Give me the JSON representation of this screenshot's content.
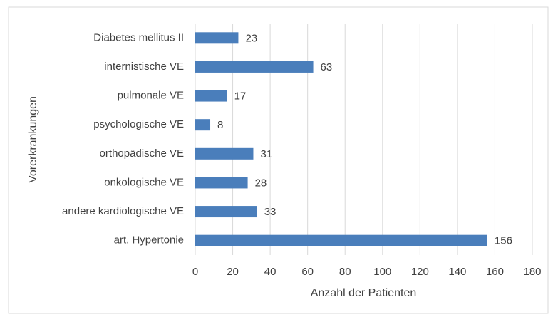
{
  "chart_data": {
    "type": "hbar",
    "categories": [
      "Diabetes mellitus II",
      "internistische VE",
      "pulmonale VE",
      "psychologische VE",
      "orthopädische VE",
      "onkologische VE",
      "andere kardiologische VE",
      "art. Hypertonie"
    ],
    "values": [
      23,
      63,
      17,
      8,
      31,
      28,
      33,
      156
    ],
    "color": "#4a7ebb",
    "xlim": [
      0,
      180
    ],
    "xticks": [
      0,
      20,
      40,
      60,
      80,
      100,
      120,
      140,
      160,
      180
    ],
    "xlabel": "Anzahl der Patienten",
    "ylabel": "Vorerkrankungen",
    "grid": true
  }
}
